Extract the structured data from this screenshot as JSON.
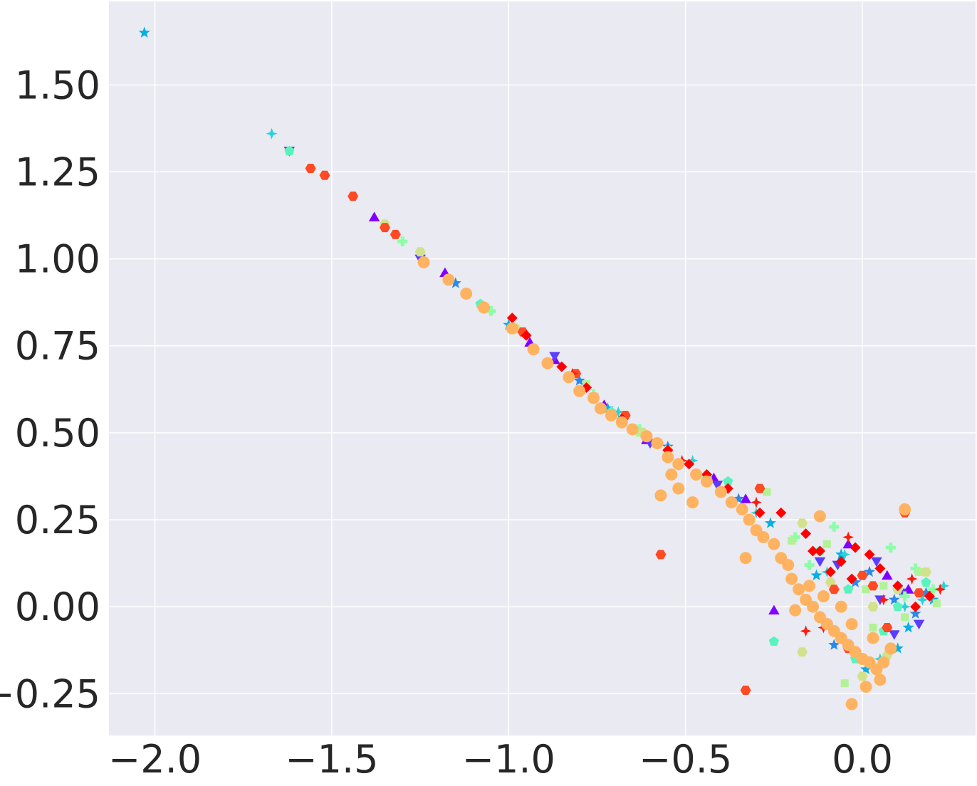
{
  "chart_data": {
    "type": "scatter",
    "title": "",
    "xlabel": "",
    "ylabel": "",
    "xlim": [
      -2.13,
      0.32
    ],
    "ylim": [
      -0.37,
      1.74
    ],
    "grid": true,
    "background": "#eaeaf2",
    "x_ticks": [
      -2.0,
      -1.5,
      -1.0,
      -0.5,
      0.0
    ],
    "x_tick_labels": [
      "−2.0",
      "−1.5",
      "−1.0",
      "−0.5",
      "0.0"
    ],
    "y_ticks": [
      -0.25,
      0.0,
      0.25,
      0.5,
      0.75,
      1.0,
      1.25,
      1.5
    ],
    "y_tick_labels": [
      "−0.25",
      "0.00",
      "0.25",
      "0.50",
      "0.75",
      "1.00",
      "1.25",
      "1.50"
    ],
    "series": [
      {
        "marker": "triangle-up",
        "color": "#8000ff",
        "points": [
          [
            -1.38,
            1.12
          ],
          [
            -1.18,
            0.96
          ],
          [
            -0.94,
            0.76
          ],
          [
            -0.87,
            0.71
          ],
          [
            -0.73,
            0.58
          ],
          [
            -0.61,
            0.48
          ],
          [
            -0.42,
            0.37
          ],
          [
            -0.33,
            0.31
          ],
          [
            -0.25,
            -0.01
          ],
          [
            -0.04,
            0.18
          ],
          [
            0.07,
            0.09
          ],
          [
            0.13,
            0.05
          ]
        ]
      },
      {
        "marker": "triangle-down",
        "color": "#5a3dfd",
        "points": [
          [
            -1.62,
            1.31
          ],
          [
            -1.25,
            1.0
          ],
          [
            -0.87,
            0.72
          ],
          [
            -0.6,
            0.47
          ],
          [
            -0.41,
            0.35
          ],
          [
            -0.12,
            0.13
          ],
          [
            0.04,
            0.13
          ],
          [
            0.09,
            -0.08
          ],
          [
            0.16,
            -0.05
          ],
          [
            -0.07,
            0.12
          ],
          [
            0.05,
            0.02
          ],
          [
            0.11,
            0.04
          ]
        ]
      },
      {
        "marker": "star",
        "color": "#2a8ae8",
        "points": [
          [
            -1.15,
            0.93
          ],
          [
            -0.8,
            0.65
          ],
          [
            -0.55,
            0.46
          ],
          [
            -0.35,
            0.31
          ],
          [
            -0.08,
            -0.11
          ],
          [
            0.02,
            0.1
          ],
          [
            0.15,
            -0.02
          ],
          [
            -0.02,
            0.07
          ],
          [
            0.09,
            0.02
          ],
          [
            0.18,
            0.04
          ]
        ]
      },
      {
        "marker": "star",
        "color": "#07b0e4",
        "points": [
          [
            -2.03,
            1.65
          ],
          [
            -1.0,
            0.81
          ],
          [
            -0.72,
            0.57
          ],
          [
            -0.26,
            0.24
          ],
          [
            -0.13,
            0.09
          ],
          [
            -0.06,
            0.15
          ],
          [
            0.1,
            -0.12
          ],
          [
            0.2,
            0.02
          ],
          [
            0.01,
            -0.18
          ],
          [
            0.13,
            -0.06
          ]
        ]
      },
      {
        "marker": "star4",
        "color": "#26d4d6",
        "points": [
          [
            -1.67,
            1.36
          ],
          [
            -0.69,
            0.56
          ],
          [
            -0.48,
            0.42
          ],
          [
            -0.3,
            0.27
          ],
          [
            -0.1,
            0.1
          ],
          [
            0.05,
            -0.15
          ],
          [
            0.12,
            0.0
          ],
          [
            0.23,
            0.06
          ],
          [
            -0.05,
            0.15
          ],
          [
            0.17,
            0.02
          ]
        ]
      },
      {
        "marker": "pentagon",
        "color": "#5bf3bd",
        "points": [
          [
            -1.62,
            1.31
          ],
          [
            -1.08,
            0.87
          ],
          [
            -0.71,
            0.56
          ],
          [
            -0.38,
            0.36
          ],
          [
            -0.25,
            -0.1
          ],
          [
            -0.02,
            -0.15
          ],
          [
            -0.12,
            0.16
          ],
          [
            0.06,
            -0.07
          ],
          [
            0.18,
            0.07
          ],
          [
            -0.04,
            0.05
          ],
          [
            0.1,
            0.0
          ]
        ]
      },
      {
        "marker": "plus",
        "color": "#8cfea7",
        "points": [
          [
            -1.3,
            1.05
          ],
          [
            -1.05,
            0.85
          ],
          [
            -0.76,
            0.61
          ],
          [
            -0.63,
            0.51
          ],
          [
            -0.44,
            0.37
          ],
          [
            -0.19,
            0.2
          ],
          [
            -0.08,
            0.23
          ],
          [
            0.08,
            0.17
          ],
          [
            0.15,
            0.11
          ],
          [
            0.2,
            0.05
          ],
          [
            -0.15,
            0.12
          ],
          [
            0.12,
            0.03
          ]
        ]
      },
      {
        "marker": "square",
        "color": "#b2f296",
        "points": [
          [
            -0.78,
            0.64
          ],
          [
            -0.63,
            0.5
          ],
          [
            -0.27,
            0.33
          ],
          [
            -0.2,
            0.19
          ],
          [
            -0.05,
            -0.22
          ],
          [
            0.01,
            0.05
          ],
          [
            0.12,
            -0.03
          ],
          [
            0.16,
            0.1
          ],
          [
            -0.1,
            0.18
          ],
          [
            0.06,
            0.06
          ],
          [
            0.21,
            0.01
          ],
          [
            0.03,
            -0.06
          ]
        ]
      },
      {
        "marker": "hexagon",
        "color": "#d2e18a",
        "points": [
          [
            -1.35,
            1.1
          ],
          [
            -1.25,
            1.02
          ],
          [
            -1.07,
            0.86
          ],
          [
            -0.98,
            0.8
          ],
          [
            -0.62,
            0.5
          ],
          [
            -0.55,
            0.45
          ],
          [
            -0.17,
            0.24
          ],
          [
            -0.17,
            -0.13
          ],
          [
            0.0,
            -0.2
          ],
          [
            0.07,
            -0.14
          ],
          [
            0.18,
            0.1
          ],
          [
            -0.09,
            0.07
          ],
          [
            0.1,
            0.05
          ],
          [
            0.03,
            0.0
          ]
        ]
      },
      {
        "marker": "hexagon",
        "color": "#ff4a23",
        "points": [
          [
            -1.56,
            1.26
          ],
          [
            -1.52,
            1.24
          ],
          [
            -1.44,
            1.18
          ],
          [
            -1.35,
            1.09
          ],
          [
            -1.32,
            1.07
          ],
          [
            -0.96,
            0.79
          ],
          [
            -0.81,
            0.67
          ],
          [
            -0.67,
            0.55
          ],
          [
            -0.57,
            0.15
          ],
          [
            -0.33,
            -0.24
          ],
          [
            -0.29,
            0.34
          ],
          [
            -0.08,
            0.05
          ],
          [
            0.0,
            0.09
          ],
          [
            0.12,
            0.27
          ],
          [
            0.16,
            0.04
          ],
          [
            0.03,
            0.06
          ],
          [
            -0.04,
            -0.12
          ],
          [
            0.07,
            -0.06
          ]
        ]
      },
      {
        "marker": "star4",
        "color": "#ff1a0e",
        "points": [
          [
            -0.82,
            0.67
          ],
          [
            -0.51,
            0.42
          ],
          [
            -0.3,
            0.3
          ],
          [
            -0.16,
            -0.07
          ],
          [
            -0.11,
            -0.06
          ],
          [
            -0.04,
            0.2
          ],
          [
            0.06,
            0.02
          ],
          [
            0.14,
            0.08
          ],
          [
            0.22,
            0.05
          ]
        ]
      },
      {
        "marker": "diamond",
        "color": "#ff0000",
        "points": [
          [
            -0.99,
            0.83
          ],
          [
            -0.95,
            0.78
          ],
          [
            -0.85,
            0.69
          ],
          [
            -0.78,
            0.63
          ],
          [
            -0.68,
            0.54
          ],
          [
            -0.55,
            0.45
          ],
          [
            -0.49,
            0.41
          ],
          [
            -0.44,
            0.38
          ],
          [
            -0.38,
            0.34
          ],
          [
            -0.29,
            0.27
          ],
          [
            -0.23,
            0.27
          ],
          [
            -0.16,
            0.21
          ],
          [
            -0.12,
            0.16
          ],
          [
            -0.09,
            0.1
          ],
          [
            -0.06,
            0.13
          ],
          [
            -0.02,
            0.17
          ],
          [
            0.02,
            0.15
          ],
          [
            -0.03,
            0.08
          ],
          [
            0.05,
            0.11
          ],
          [
            0.1,
            0.06
          ],
          [
            0.15,
            0.0
          ],
          [
            0.19,
            0.03
          ],
          [
            -0.14,
            0.16
          ]
        ]
      },
      {
        "marker": "circle",
        "color": "#ffb360",
        "points": [
          [
            -1.24,
            0.99
          ],
          [
            -1.17,
            0.94
          ],
          [
            -1.12,
            0.9
          ],
          [
            -1.07,
            0.86
          ],
          [
            -0.99,
            0.8
          ],
          [
            -0.93,
            0.74
          ],
          [
            -0.89,
            0.7
          ],
          [
            -0.83,
            0.66
          ],
          [
            -0.8,
            0.62
          ],
          [
            -0.76,
            0.6
          ],
          [
            -0.74,
            0.57
          ],
          [
            -0.71,
            0.55
          ],
          [
            -0.68,
            0.53
          ],
          [
            -0.65,
            0.51
          ],
          [
            -0.61,
            0.49
          ],
          [
            -0.58,
            0.47
          ],
          [
            -0.55,
            0.43
          ],
          [
            -0.52,
            0.41
          ],
          [
            -0.47,
            0.38
          ],
          [
            -0.44,
            0.36
          ],
          [
            -0.4,
            0.33
          ],
          [
            -0.37,
            0.3
          ],
          [
            -0.34,
            0.28
          ],
          [
            -0.32,
            0.25
          ],
          [
            -0.3,
            0.22
          ],
          [
            -0.28,
            0.2
          ],
          [
            -0.25,
            0.18
          ],
          [
            -0.23,
            0.14
          ],
          [
            -0.21,
            0.12
          ],
          [
            -0.2,
            0.08
          ],
          [
            -0.18,
            0.05
          ],
          [
            -0.16,
            0.02
          ],
          [
            -0.14,
            0.0
          ],
          [
            -0.12,
            -0.03
          ],
          [
            -0.1,
            -0.05
          ],
          [
            -0.08,
            -0.07
          ],
          [
            -0.06,
            -0.09
          ],
          [
            -0.04,
            -0.11
          ],
          [
            -0.02,
            -0.13
          ],
          [
            0.0,
            -0.15
          ],
          [
            0.02,
            -0.16
          ],
          [
            0.04,
            -0.18
          ],
          [
            0.06,
            -0.16
          ],
          [
            0.08,
            -0.12
          ],
          [
            0.01,
            -0.23
          ],
          [
            -0.03,
            -0.28
          ],
          [
            -0.52,
            0.34
          ],
          [
            -0.54,
            0.38
          ],
          [
            -0.57,
            0.32
          ],
          [
            -0.48,
            0.3
          ],
          [
            -0.33,
            0.14
          ],
          [
            -0.19,
            -0.01
          ],
          [
            -0.12,
            0.26
          ],
          [
            0.12,
            0.28
          ],
          [
            -0.06,
            0.0
          ],
          [
            -0.03,
            -0.05
          ],
          [
            0.03,
            -0.09
          ],
          [
            -0.11,
            0.03
          ],
          [
            -0.15,
            0.06
          ],
          [
            0.05,
            -0.21
          ]
        ]
      }
    ]
  }
}
